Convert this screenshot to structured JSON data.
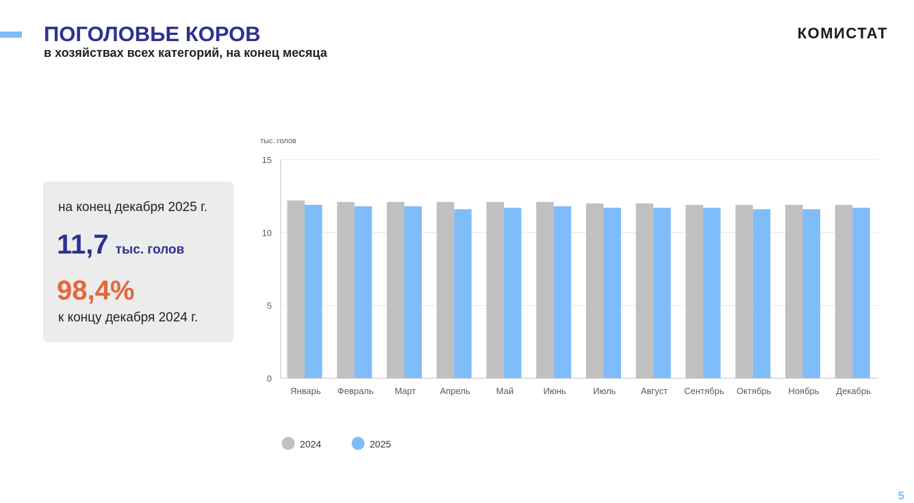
{
  "header": {
    "title": "ПОГОЛОВЬЕ КОРОВ",
    "subtitle": "в хозяйствах всех категорий, на конец месяца",
    "brand": "КОМИСТАТ"
  },
  "info_card": {
    "date_label": "на конец декабря 2025 г.",
    "value": "11,7",
    "unit": "тыс. голов",
    "percent": "98,4%",
    "compare_label": "к концу декабря 2024 г."
  },
  "page_number": "5",
  "colors": {
    "title": "#2e3192",
    "percent": "#e2673d",
    "series_2024": "#c0c0c0",
    "series_2025": "#7fbcfa",
    "card_bg": "#ececec"
  },
  "chart_data": {
    "type": "bar",
    "title": "",
    "xlabel": "",
    "ylabel": "тыс. голов",
    "ylim": [
      0,
      15
    ],
    "yticks": [
      0,
      5,
      10,
      15
    ],
    "grid": true,
    "legend": "bottom-left",
    "categories": [
      "Январь",
      "Февраль",
      "Март",
      "Апрель",
      "Май",
      "Июнь",
      "Июль",
      "Август",
      "Сентябрь",
      "Октябрь",
      "Ноябрь",
      "Декабрь"
    ],
    "series": [
      {
        "name": "2024",
        "color": "#c0c0c0",
        "values": [
          12.2,
          12.1,
          12.1,
          12.1,
          12.1,
          12.1,
          12.0,
          12.0,
          11.9,
          11.9,
          11.9,
          11.9
        ]
      },
      {
        "name": "2025",
        "color": "#7fbcfa",
        "values": [
          11.9,
          11.8,
          11.8,
          11.6,
          11.7,
          11.8,
          11.7,
          11.7,
          11.7,
          11.6,
          11.6,
          11.7
        ]
      }
    ]
  }
}
